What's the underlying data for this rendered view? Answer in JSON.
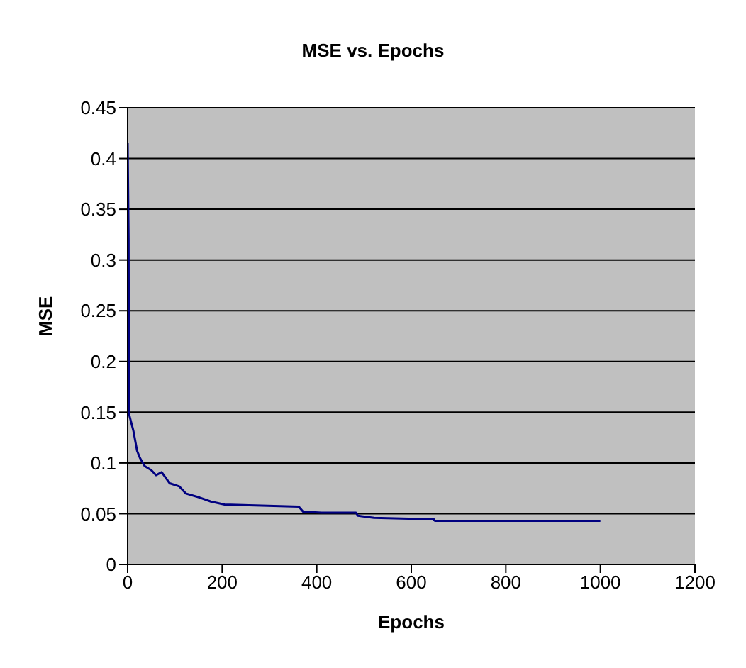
{
  "chart_data": {
    "type": "line",
    "title": "MSE vs. Epochs",
    "xlabel": "Epochs",
    "ylabel": "MSE",
    "x": [
      0,
      2,
      3,
      12,
      20,
      26,
      36,
      50,
      60,
      72,
      89,
      109,
      123,
      152,
      176,
      205,
      283,
      362,
      371,
      410,
      483,
      487,
      521,
      594,
      647,
      650,
      1000
    ],
    "series": [
      {
        "color": "#000080",
        "values": [
          0.415,
          0.321,
          0.148,
          0.132,
          0.112,
          0.105,
          0.097,
          0.093,
          0.088,
          0.091,
          0.08,
          0.077,
          0.07,
          0.066,
          0.062,
          0.059,
          0.058,
          0.057,
          0.052,
          0.051,
          0.051,
          0.048,
          0.046,
          0.045,
          0.045,
          0.043,
          0.043
        ]
      }
    ],
    "xlim": [
      0,
      1200
    ],
    "xticks": [
      0,
      200,
      400,
      600,
      800,
      1000,
      1200
    ],
    "ylim": [
      0,
      0.45
    ],
    "yticks": [
      0,
      0.05,
      0.1,
      0.15,
      0.2,
      0.25,
      0.3,
      0.35,
      0.4,
      0.45
    ],
    "grid": "y",
    "legend": false,
    "marker": "none",
    "line_style": "solid"
  }
}
